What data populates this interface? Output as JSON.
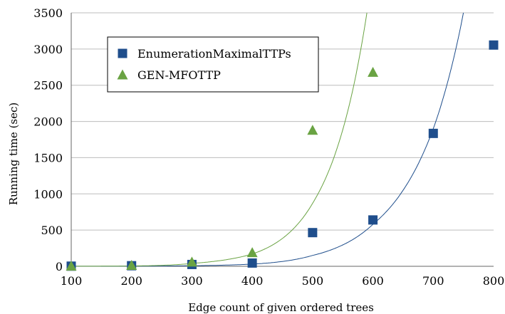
{
  "chart_data": {
    "type": "scatter",
    "xlabel": "Edge count of given ordered trees",
    "ylabel": "Running time (sec)",
    "xlim": [
      100,
      800
    ],
    "ylim": [
      0,
      3500
    ],
    "x_ticks": [
      100,
      200,
      300,
      400,
      500,
      600,
      700,
      800
    ],
    "y_ticks": [
      0,
      500,
      1000,
      1500,
      2000,
      2500,
      3000,
      3500
    ],
    "grid": "horizontal",
    "legend_position": "top-left",
    "series": [
      {
        "name": "EnumerationMaximalTTPs",
        "marker": "square",
        "color": "#1f4e8c",
        "x": [
          100,
          200,
          300,
          400,
          500,
          600,
          700,
          800
        ],
        "y": [
          2,
          8,
          25,
          45,
          465,
          640,
          1835,
          3055
        ],
        "trend": {
          "type": "exponential",
          "color": "#1f4e8c",
          "points": [
            [
              100,
              0.5
            ],
            [
              400,
              30
            ],
            [
              500,
              150
            ],
            [
              600,
              580
            ],
            [
              700,
              1900
            ],
            [
              750,
              3500
            ]
          ]
        }
      },
      {
        "name": "GEN-MFOTTP",
        "marker": "triangle",
        "color": "#6aa343",
        "x": [
          100,
          200,
          300,
          400,
          500,
          600
        ],
        "y": [
          5,
          15,
          60,
          190,
          1880,
          2680
        ],
        "trend": {
          "type": "exponential",
          "color": "#6aa343",
          "points": [
            [
              100,
              0.5
            ],
            [
              300,
              40
            ],
            [
              400,
              170
            ],
            [
              500,
              870
            ],
            [
              560,
              2200
            ],
            [
              590,
              3500
            ]
          ]
        }
      }
    ]
  }
}
